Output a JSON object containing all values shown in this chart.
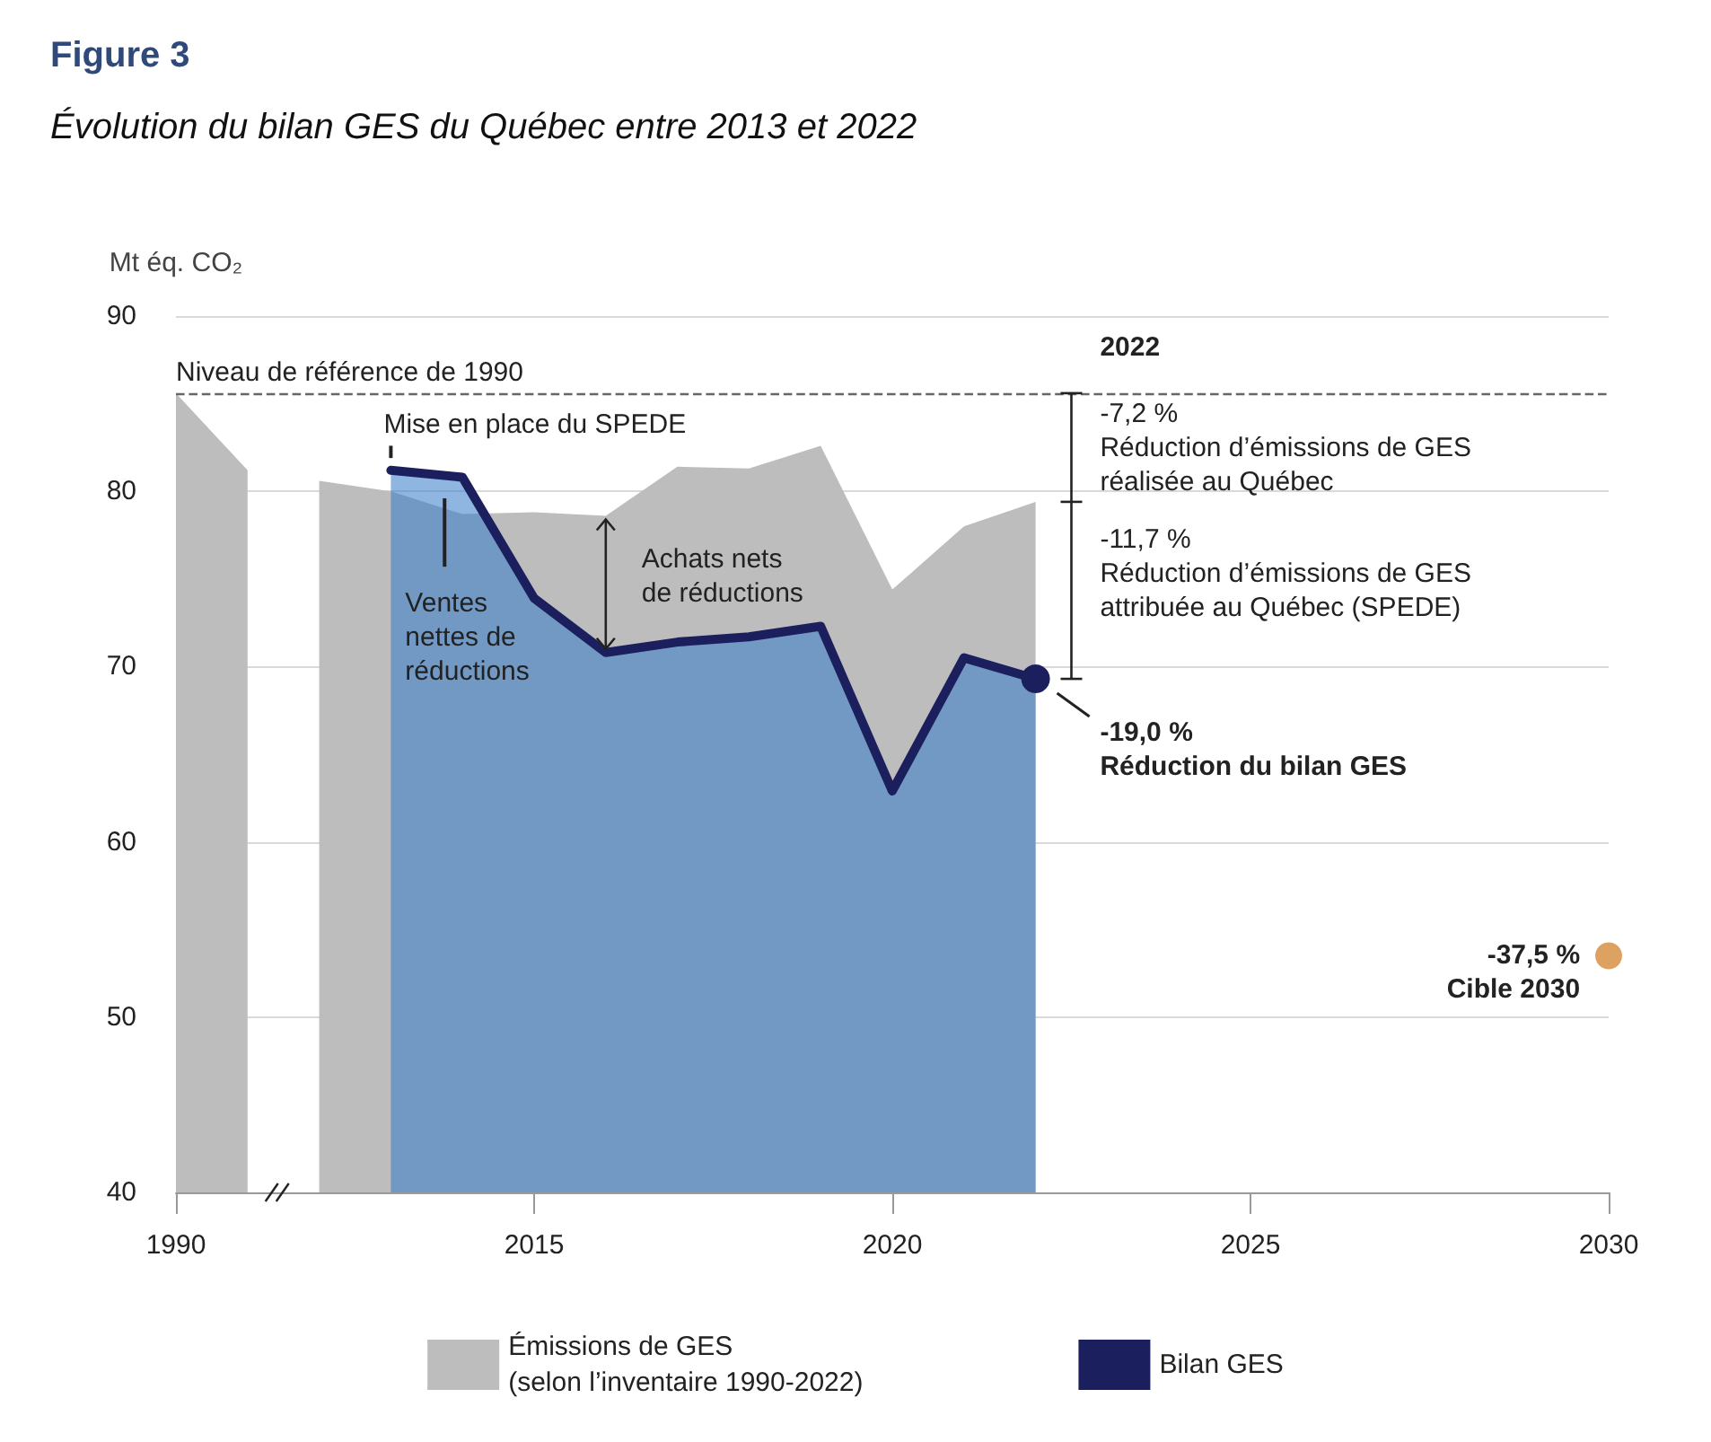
{
  "chart_data": {
    "type": "area",
    "title": "Figure 3",
    "subtitle": "Évolution du bilan GES du Québec entre 2013 et 2022",
    "ylabel": "Mt éq. CO₂",
    "categories": [
      "1990",
      null,
      null,
      null,
      null,
      "2015",
      null,
      null,
      null,
      null,
      "2020",
      null,
      null,
      null,
      null,
      "2025",
      null,
      null,
      null,
      null,
      "2030"
    ],
    "series": [
      {
        "name": "Émissions de GES\n(selon l’inventaire 1990-2022)",
        "color": "#bdbdbd",
        "values": [
          85.6,
          81.2,
          null,
          null,
          null,
          null,
          null,
          null,
          null,
          null,
          null,
          null,
          null,
          null,
          null,
          null,
          null,
          null,
          null,
          null,
          null
        ]
      },
      {
        "color": "#bdbdbd",
        "values": [
          null,
          null,
          80.6,
          80.0,
          78.7,
          78.8,
          78.6,
          81.4,
          81.3,
          82.6,
          74.4,
          78.0,
          79.4,
          null,
          null,
          null,
          null,
          null,
          null,
          null,
          null
        ]
      },
      {
        "name": "Bilan GES",
        "color": "#1b1f5e",
        "values": [
          null,
          null,
          null,
          81.2,
          80.8,
          73.9,
          70.8,
          71.4,
          71.7,
          72.3,
          62.9,
          70.5,
          69.3,
          null,
          null,
          null,
          null,
          null,
          null,
          null,
          null
        ]
      },
      {
        "type": "scatter",
        "color": "#d4893a",
        "marker": "circle",
        "values": [
          null,
          null,
          null,
          null,
          null,
          null,
          null,
          null,
          null,
          null,
          null,
          null,
          null,
          null,
          null,
          null,
          null,
          null,
          null,
          null,
          53.5
        ]
      }
    ],
    "ylim": [
      40,
      90
    ],
    "yticks": [
      40,
      50,
      60,
      70,
      80,
      90
    ],
    "grid": "y",
    "legend": "bottom",
    "ref_lines": [
      {
        "axis": "y",
        "value": 85.6,
        "label": "Niveau de référence de 1990",
        "line_style": "dashed",
        "color": "#666666"
      }
    ],
    "annotations": [
      "2022",
      "-7,2 %\nRéduction d’émissions de GES\nréalisée au Québec",
      "-11,7 %\nRéduction d’émissions de GES\nattribuée au Québec (SPEDE)",
      "-19,0 %\nRéduction du bilan GES",
      {
        "text": "-37,5 %\nCible 2030",
        "x": "2030",
        "y": 53.5
      },
      "Mise en place du SPEDE",
      "Ventes\nnettes de\nréductions",
      "Achats nets\nde réductions"
    ]
  }
}
